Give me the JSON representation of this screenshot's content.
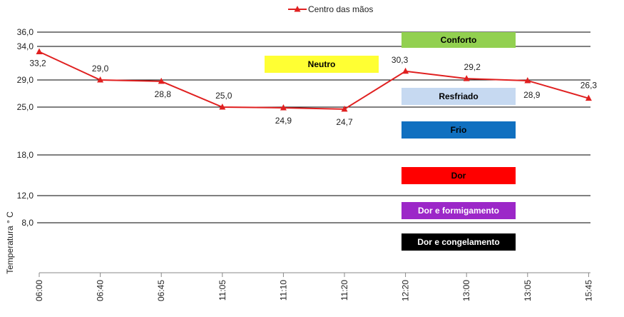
{
  "chart_data": {
    "type": "line",
    "title": "",
    "xlabel": "",
    "ylabel": "Temperatura ° C",
    "categories": [
      "06:00",
      "06:40",
      "06:45",
      "11:05",
      "11:10",
      "11:20",
      "12:20",
      "13:00",
      "13:05",
      "15:45"
    ],
    "series": [
      {
        "name": "Centro das mãos",
        "color": "#e02020",
        "marker": "triangle",
        "values": [
          33.2,
          29.0,
          28.8,
          25.0,
          24.9,
          24.7,
          30.3,
          29.2,
          28.9,
          26.3
        ],
        "labels": [
          "33,2",
          "29,0",
          "28,8",
          "25,0",
          "24,9",
          "24,7",
          "30,3",
          "29,2",
          "28,9",
          "26,3"
        ]
      }
    ],
    "y_ticks": [
      {
        "value": 8.0,
        "label": "8,0"
      },
      {
        "value": 12.0,
        "label": "12,0"
      },
      {
        "value": 18.0,
        "label": "18,0"
      },
      {
        "value": 25.0,
        "label": "25,0"
      },
      {
        "value": 29.0,
        "label": "29,0"
      },
      {
        "value": 34.0,
        "label": "34,0"
      },
      {
        "value": 36.0,
        "label": "36,0"
      }
    ],
    "legend_position": "top-center",
    "grid": "horizontal lines at tick values",
    "annotations": [
      {
        "text": "Conforto",
        "color": "#92d050",
        "text_color": "#000000"
      },
      {
        "text": "Neutro",
        "color": "#ffff33",
        "text_color": "#000000"
      },
      {
        "text": "Resfriado",
        "color": "#c6d9f1",
        "text_color": "#000000"
      },
      {
        "text": "Frio",
        "color": "#1070c0",
        "text_color": "#000000"
      },
      {
        "text": "Dor",
        "color": "#ff0000",
        "text_color": "#000000"
      },
      {
        "text": "Dor e formigamento",
        "color": "#9c27c8",
        "text_color": "#ffffff"
      },
      {
        "text": "Dor e congelamento",
        "color": "#000000",
        "text_color": "#ffffff"
      }
    ]
  }
}
